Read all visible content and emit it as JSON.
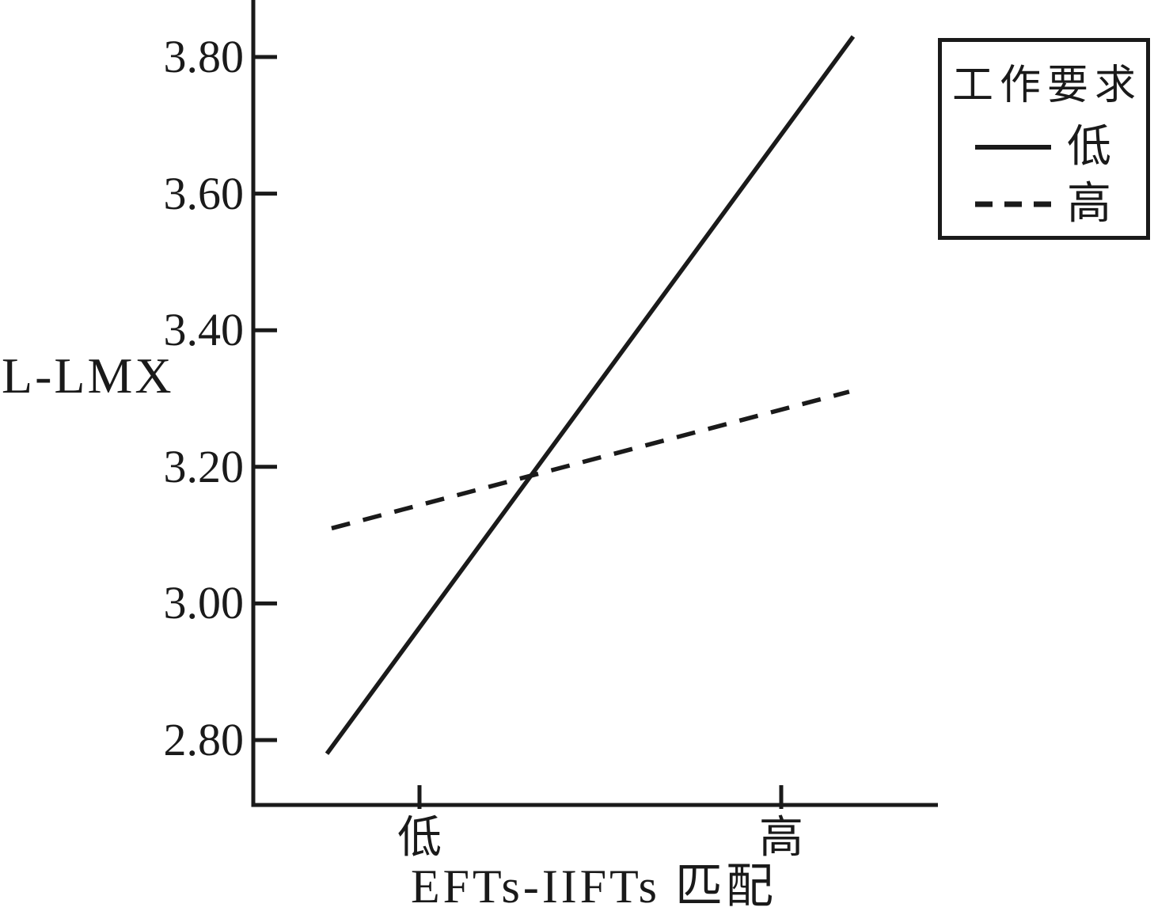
{
  "chart_data": {
    "type": "line",
    "title": "",
    "ylabel": "L-LMX",
    "xlabel": "EFTs-IIFTs 匹配",
    "x_categories": [
      "低",
      "高"
    ],
    "y_ticks": [
      3.8,
      3.6,
      3.4,
      3.2,
      3.0,
      2.8
    ],
    "y_tick_labels": [
      "3.80",
      "3.60",
      "3.40",
      "3.20",
      "3.00",
      "2.80"
    ],
    "ylim": [
      2.7,
      3.88
    ],
    "grid": false,
    "legend": {
      "title": "工作要求",
      "position": "top-right",
      "items": [
        {
          "label": "低",
          "style": "solid"
        },
        {
          "label": "高",
          "style": "dashed"
        }
      ]
    },
    "series": [
      {
        "name": "低",
        "style": "solid",
        "x_frac": [
          -0.256,
          1.199
        ],
        "values": [
          2.78,
          3.83
        ]
      },
      {
        "name": "高",
        "style": "dashed",
        "x_frac": [
          -0.243,
          1.188
        ],
        "values": [
          3.11,
          3.31
        ]
      }
    ],
    "colors": {
      "line": "#1a1a1a",
      "text": "#1a1a1a",
      "background": "#ffffff"
    }
  }
}
